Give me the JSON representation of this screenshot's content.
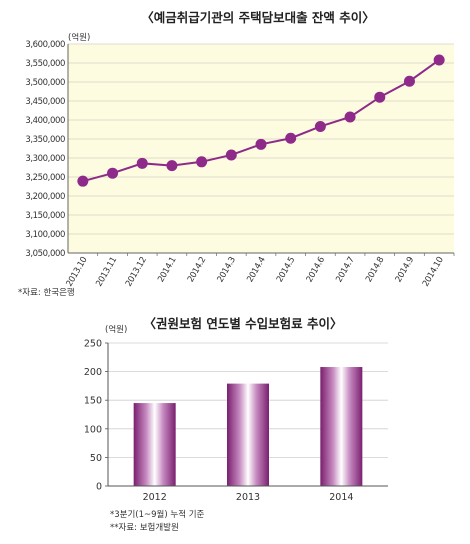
{
  "chart_data": [
    {
      "type": "line",
      "title": "〈예금취급기관의 주택담보대출 잔액 추이〉",
      "unit": "(억원)",
      "x": [
        "2013.10",
        "2013.11",
        "2013.12",
        "2014.1",
        "2014.2",
        "2014.3",
        "2014.4",
        "2014.5",
        "2014.6",
        "2014.7",
        "2014.8",
        "2014.9",
        "2014.10"
      ],
      "y_ticks": [
        "3,600,000",
        "3,550,000",
        "3,500,000",
        "3,450,000",
        "3,400,000",
        "3,350,000",
        "3,300,000",
        "3,250,000",
        "3,200,000",
        "3,150,000",
        "3,100,000",
        "3,050,000"
      ],
      "ylim": [
        3050000,
        3600000
      ],
      "series": [
        {
          "values": [
            3239000,
            3260000,
            3286000,
            3280000,
            3290000,
            3308000,
            3336000,
            3352000,
            3383000,
            3408000,
            3460000,
            3502000,
            3558000
          ]
        }
      ],
      "grid": true,
      "note": "*자료: 한국은행",
      "colors": {
        "line": "#8d2a8a",
        "plot_bg": "#fdfbe0"
      }
    },
    {
      "type": "bar",
      "title": "〈권원보험 연도별 수입보험료 추이〉",
      "unit": "(억원)",
      "categories": [
        "2012",
        "2013",
        "2014"
      ],
      "values": [
        145,
        179,
        208
      ],
      "y_ticks": [
        "250",
        "200",
        "150",
        "100",
        "50",
        "0"
      ],
      "ylim": [
        0,
        250
      ],
      "grid": true,
      "notes": [
        "*3분기(1~9월) 누적 기준",
        "**자료: 보험개발원"
      ],
      "colors": {
        "bar_dark": "#7a1f6f",
        "bar_light": "#ffffff"
      }
    }
  ]
}
